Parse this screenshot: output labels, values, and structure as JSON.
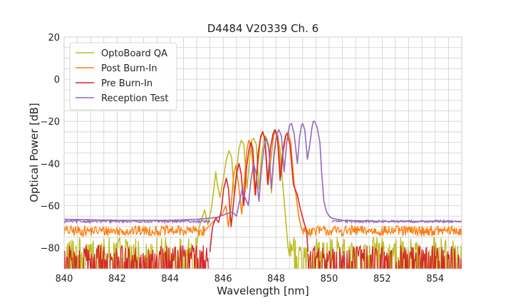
{
  "chart_data": {
    "type": "line",
    "title": "D4484 V20339 Ch. 6",
    "xlabel": "Wavelength [nm]",
    "ylabel": "Optical Power [dB]",
    "xlim": [
      840,
      855
    ],
    "ylim": [
      -90,
      20
    ],
    "xticks": [
      840,
      842,
      844,
      846,
      848,
      850,
      852,
      854
    ],
    "yticks": [
      20,
      0,
      -20,
      -40,
      -60,
      -80
    ],
    "xticks_minor_step": 0.5,
    "yticks_minor_step": 5,
    "grid": true,
    "legend_position": "upper-left",
    "series": [
      {
        "name": "OptoBoard QA",
        "color": "#bcbd22",
        "noise_floor": {
          "x_ranges": [
            [
              840,
              845.0
            ],
            [
              848.5,
              855
            ]
          ],
          "mean": -79,
          "spread": 10
        },
        "points": [
          [
            845.0,
            -79
          ],
          [
            845.1,
            -70
          ],
          [
            845.2,
            -66
          ],
          [
            845.3,
            -62
          ],
          [
            845.42,
            -69
          ],
          [
            845.55,
            -62
          ],
          [
            845.65,
            -52
          ],
          [
            845.72,
            -44
          ],
          [
            845.78,
            -50
          ],
          [
            845.88,
            -56
          ],
          [
            846.0,
            -48
          ],
          [
            846.12,
            -38
          ],
          [
            846.22,
            -34
          ],
          [
            846.32,
            -37
          ],
          [
            846.42,
            -55
          ],
          [
            846.5,
            -44
          ],
          [
            846.6,
            -33
          ],
          [
            846.68,
            -29
          ],
          [
            846.78,
            -31
          ],
          [
            846.9,
            -52
          ],
          [
            846.98,
            -40
          ],
          [
            847.08,
            -29
          ],
          [
            847.15,
            -28
          ],
          [
            847.25,
            -31
          ],
          [
            847.35,
            -52
          ],
          [
            847.45,
            -36
          ],
          [
            847.55,
            -28
          ],
          [
            847.6,
            -27
          ],
          [
            847.72,
            -31
          ],
          [
            847.82,
            -54
          ],
          [
            847.92,
            -37
          ],
          [
            848.0,
            -29
          ],
          [
            848.05,
            -28
          ],
          [
            848.15,
            -33
          ],
          [
            848.25,
            -50
          ],
          [
            848.35,
            -65
          ],
          [
            848.45,
            -80
          ],
          [
            848.5,
            -84
          ]
        ]
      },
      {
        "name": "Post Burn-In",
        "color": "#ff7f0e",
        "noise_floor": {
          "x_ranges": [
            [
              840,
              845.3
            ],
            [
              849.0,
              855
            ]
          ],
          "mean": -72,
          "spread": 2.5
        },
        "points": [
          [
            845.3,
            -72
          ],
          [
            845.45,
            -70
          ],
          [
            845.6,
            -68
          ],
          [
            845.75,
            -66
          ],
          [
            845.9,
            -65
          ],
          [
            846.0,
            -63
          ],
          [
            846.1,
            -60
          ],
          [
            846.2,
            -70
          ],
          [
            846.3,
            -60
          ],
          [
            846.4,
            -45
          ],
          [
            846.48,
            -41
          ],
          [
            846.58,
            -50
          ],
          [
            846.7,
            -64
          ],
          [
            846.8,
            -48
          ],
          [
            846.9,
            -33
          ],
          [
            846.97,
            -29
          ],
          [
            847.07,
            -33
          ],
          [
            847.2,
            -55
          ],
          [
            847.3,
            -42
          ],
          [
            847.4,
            -29
          ],
          [
            847.48,
            -25
          ],
          [
            847.58,
            -28
          ],
          [
            847.7,
            -50
          ],
          [
            847.8,
            -38
          ],
          [
            847.9,
            -27
          ],
          [
            847.97,
            -24
          ],
          [
            848.07,
            -27
          ],
          [
            848.18,
            -46
          ],
          [
            848.28,
            -34
          ],
          [
            848.38,
            -26
          ],
          [
            848.45,
            -25
          ],
          [
            848.55,
            -30
          ],
          [
            848.68,
            -50
          ],
          [
            848.75,
            -55
          ],
          [
            848.85,
            -65
          ],
          [
            848.95,
            -71
          ],
          [
            849.0,
            -72
          ]
        ]
      },
      {
        "name": "Pre Burn-In",
        "color": "#d62728",
        "noise_floor": {
          "x_ranges": [
            [
              840,
              845.5
            ],
            [
              849.2,
              855
            ]
          ],
          "mean": -82,
          "spread": 8
        },
        "points": [
          [
            845.5,
            -82
          ],
          [
            845.6,
            -70
          ],
          [
            845.72,
            -66
          ],
          [
            845.83,
            -68
          ],
          [
            845.93,
            -62
          ],
          [
            846.02,
            -52
          ],
          [
            846.12,
            -47
          ],
          [
            846.2,
            -52
          ],
          [
            846.3,
            -70
          ],
          [
            846.42,
            -55
          ],
          [
            846.52,
            -44
          ],
          [
            846.6,
            -40
          ],
          [
            846.68,
            -45
          ],
          [
            846.78,
            -60
          ],
          [
            846.88,
            -42
          ],
          [
            846.98,
            -33
          ],
          [
            847.05,
            -30
          ],
          [
            847.12,
            -33
          ],
          [
            847.22,
            -55
          ],
          [
            847.32,
            -35
          ],
          [
            847.42,
            -27
          ],
          [
            847.5,
            -25
          ],
          [
            847.58,
            -29
          ],
          [
            847.68,
            -50
          ],
          [
            847.78,
            -33
          ],
          [
            847.88,
            -26
          ],
          [
            847.95,
            -24
          ],
          [
            848.05,
            -28
          ],
          [
            848.15,
            -48
          ],
          [
            848.25,
            -34
          ],
          [
            848.35,
            -27
          ],
          [
            848.42,
            -26
          ],
          [
            848.52,
            -31
          ],
          [
            848.65,
            -50
          ],
          [
            848.8,
            -55
          ],
          [
            848.92,
            -62
          ],
          [
            849.05,
            -68
          ],
          [
            849.15,
            -72
          ],
          [
            849.2,
            -82
          ]
        ]
      },
      {
        "name": "Reception Test",
        "color": "#9467bd",
        "noise_floor": {
          "x_ranges": [
            [
              840,
              845.5
            ],
            [
              850.1,
              855
            ]
          ],
          "mean": -67.5,
          "spread": 0.6
        },
        "points": [
          [
            840,
            -66.5
          ],
          [
            842,
            -67
          ],
          [
            844,
            -67
          ],
          [
            845.0,
            -66.5
          ],
          [
            845.5,
            -66
          ],
          [
            845.8,
            -65.5
          ],
          [
            846.1,
            -64
          ],
          [
            846.35,
            -63
          ],
          [
            846.5,
            -65
          ],
          [
            846.62,
            -58
          ],
          [
            846.72,
            -52
          ],
          [
            846.82,
            -56
          ],
          [
            846.95,
            -60
          ],
          [
            847.05,
            -48
          ],
          [
            847.15,
            -40
          ],
          [
            847.25,
            -45
          ],
          [
            847.35,
            -58
          ],
          [
            847.45,
            -42
          ],
          [
            847.55,
            -32
          ],
          [
            847.62,
            -28
          ],
          [
            847.72,
            -33
          ],
          [
            847.82,
            -52
          ],
          [
            847.92,
            -35
          ],
          [
            848.02,
            -26
          ],
          [
            848.1,
            -24
          ],
          [
            848.2,
            -27
          ],
          [
            848.3,
            -44
          ],
          [
            848.4,
            -30
          ],
          [
            848.5,
            -22
          ],
          [
            848.58,
            -21
          ],
          [
            848.68,
            -26
          ],
          [
            848.8,
            -40
          ],
          [
            848.88,
            -28
          ],
          [
            848.95,
            -22
          ],
          [
            849.0,
            -21
          ],
          [
            849.08,
            -24
          ],
          [
            849.18,
            -38
          ],
          [
            849.28,
            -30
          ],
          [
            849.35,
            -23
          ],
          [
            849.4,
            -20
          ],
          [
            849.45,
            -20
          ],
          [
            849.55,
            -23
          ],
          [
            849.65,
            -30
          ],
          [
            849.72,
            -45
          ],
          [
            849.8,
            -58
          ],
          [
            849.9,
            -63
          ],
          [
            850.0,
            -65
          ],
          [
            850.1,
            -66
          ],
          [
            850.5,
            -67
          ],
          [
            852,
            -67.5
          ],
          [
            854,
            -67.5
          ],
          [
            855,
            -67.5
          ]
        ]
      }
    ]
  }
}
